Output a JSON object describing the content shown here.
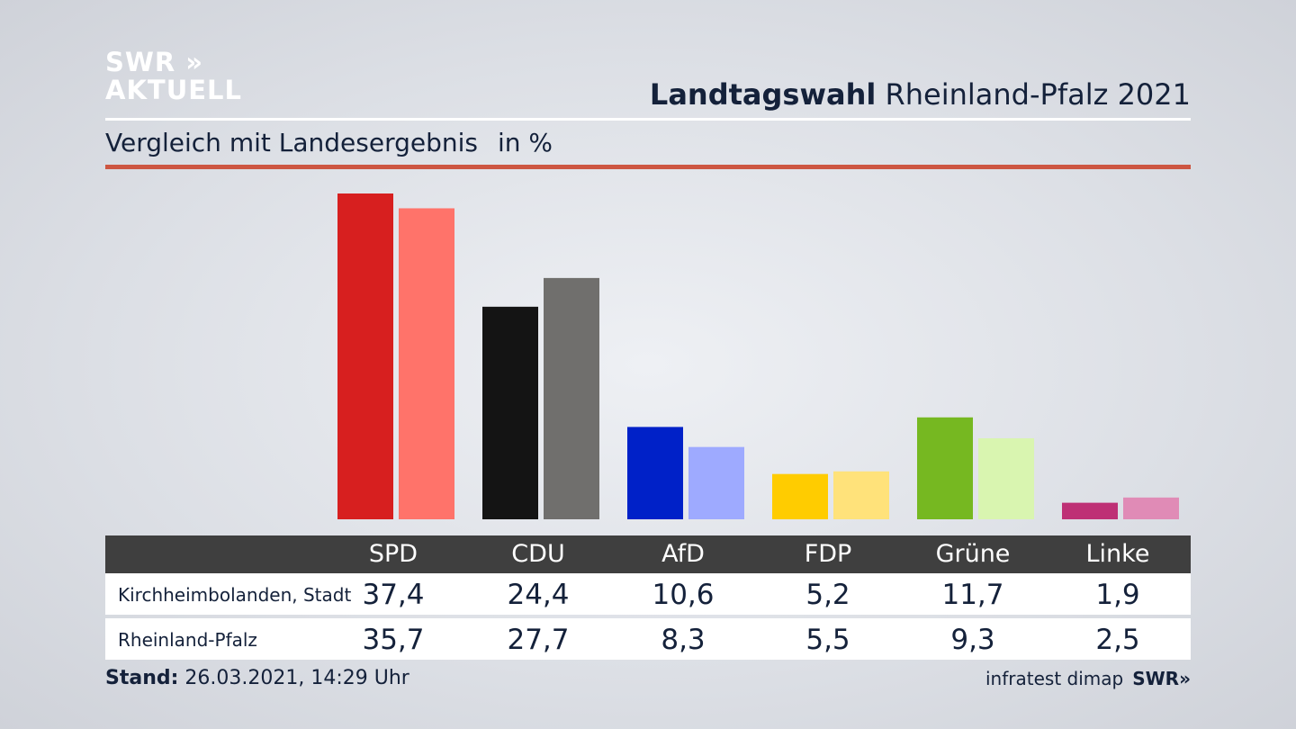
{
  "logo": {
    "line1": "SWR »",
    "line2": "AKTUELL"
  },
  "header": {
    "title_bold": "Landtagswahl",
    "title_rest": "Rheinland-Pfalz 2021"
  },
  "subtitle": {
    "text": "Vergleich mit Landesergebnis",
    "unit": "in %"
  },
  "colors": {
    "SPD": [
      "#d71f1f",
      "#ff736a"
    ],
    "CDU": [
      "#141414",
      "#706f6d"
    ],
    "AfD": [
      "#0021c8",
      "#9eaaff"
    ],
    "FDP": [
      "#ffcc00",
      "#ffe27a"
    ],
    "Grüne": [
      "#76b821",
      "#d9f5b0"
    ],
    "Linke": [
      "#be3075",
      "#e08bb6"
    ]
  },
  "chart_data": {
    "type": "bar",
    "categories": [
      "SPD",
      "CDU",
      "AfD",
      "FDP",
      "Grüne",
      "Linke"
    ],
    "series": [
      {
        "name": "Kirchheimbolanden, Stadt",
        "values": [
          37.4,
          24.4,
          10.6,
          5.2,
          11.7,
          1.9
        ]
      },
      {
        "name": "Rheinland-Pfalz",
        "values": [
          35.7,
          27.7,
          8.3,
          5.5,
          9.3,
          2.5
        ]
      }
    ],
    "ylim": [
      0,
      37.4
    ]
  },
  "table": {
    "headers": [
      "SPD",
      "CDU",
      "AfD",
      "FDP",
      "Grüne",
      "Linke"
    ],
    "rows": [
      {
        "label": "Kirchheimbolanden, Stadt",
        "values": [
          "37,4",
          "24,4",
          "10,6",
          "5,2",
          "11,7",
          "1,9"
        ]
      },
      {
        "label": "Rheinland-Pfalz",
        "values": [
          "35,7",
          "27,7",
          "8,3",
          "5,5",
          "9,3",
          "2,5"
        ]
      }
    ]
  },
  "footer": {
    "stand_label": "Stand:",
    "stand_value": "26.03.2021, 14:29 Uhr",
    "source": "infratest dimap",
    "brand": "SWR»"
  }
}
